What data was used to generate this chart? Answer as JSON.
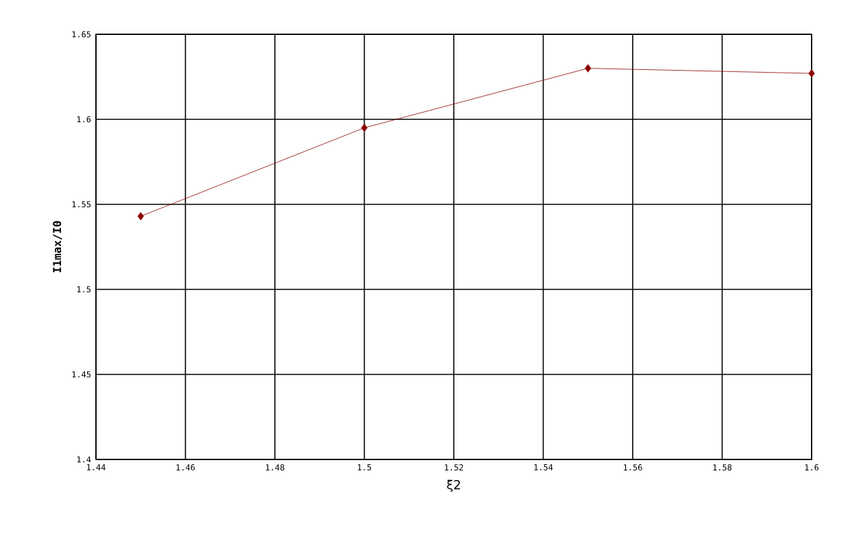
{
  "chart_data": {
    "type": "line",
    "xlabel": "ξ2",
    "ylabel": "I1max/I0",
    "x": [
      1.45,
      1.5,
      1.55,
      1.6
    ],
    "series": [
      {
        "color": "#8b0000",
        "values": [
          1.543,
          1.595,
          1.63,
          1.627
        ]
      }
    ],
    "xlim": [
      1.44,
      1.6
    ],
    "xticks": [
      1.44,
      1.46,
      1.48,
      1.5,
      1.52,
      1.54,
      1.56,
      1.58,
      1.6
    ],
    "ylim": [
      1.4,
      1.65
    ],
    "yticks": [
      1.4,
      1.45,
      1.5,
      1.55,
      1.6,
      1.65
    ],
    "grid": true,
    "marker": "diamond",
    "line_style": "solid"
  }
}
